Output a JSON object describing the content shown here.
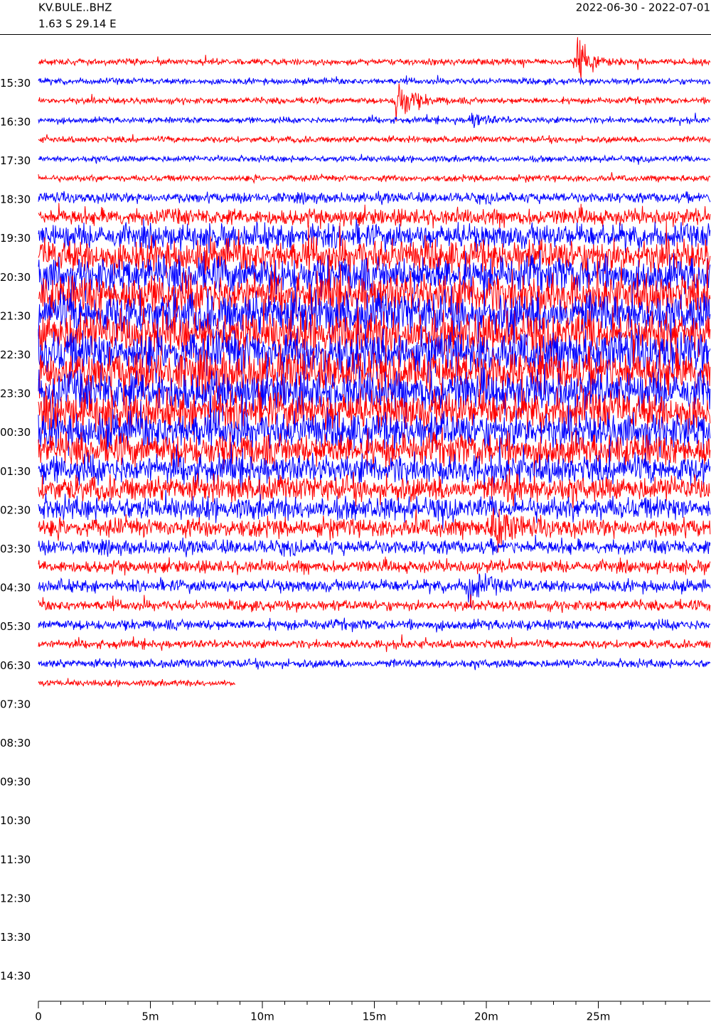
{
  "chart_data": {
    "type": "helicorder",
    "title": "KV.BULE..BHZ",
    "subtitle": "1.63 S 29.14 E",
    "date_range": "2022-06-30 - 2022-07-01",
    "row_labels": [
      "15:30",
      "16:30",
      "17:30",
      "18:30",
      "19:30",
      "20:30",
      "21:30",
      "22:30",
      "23:30",
      "00:30",
      "01:30",
      "02:30",
      "03:30",
      "04:30",
      "05:30",
      "06:30",
      "07:30",
      "08:30",
      "09:30",
      "10:30",
      "11:30",
      "12:30",
      "13:30",
      "14:30"
    ],
    "colors": [
      "#ff0000",
      "#0000ff"
    ],
    "xlim": [
      0,
      30
    ],
    "xticks": [
      0,
      {
        "value": 5,
        "label": "5m"
      },
      {
        "value": 10,
        "label": "10m"
      },
      {
        "value": 15,
        "label": "15m"
      },
      {
        "value": 20,
        "label": "20m"
      },
      {
        "value": 25,
        "label": "25m"
      }
    ],
    "minor_xticks": [
      1,
      2,
      3,
      4,
      6,
      7,
      8,
      9,
      11,
      12,
      13,
      14,
      16,
      17,
      18,
      19,
      21,
      22,
      23,
      24,
      26,
      27,
      28,
      29
    ]
  }
}
